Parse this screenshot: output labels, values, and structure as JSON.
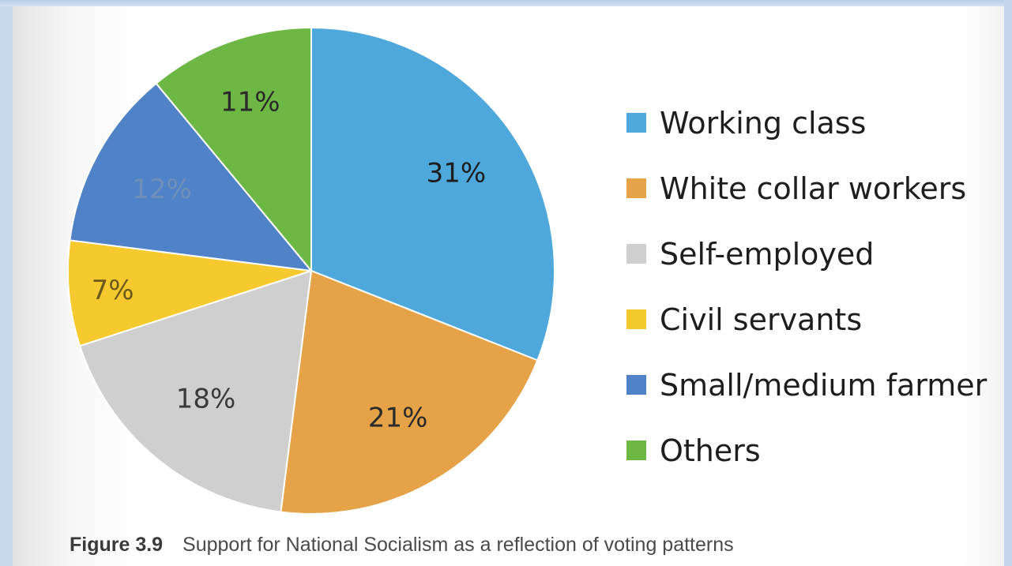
{
  "chart_data": {
    "type": "pie",
    "categories": [
      "Working class",
      "White collar workers",
      "Self-employed",
      "Civil servants",
      "Small/medium farmers",
      "Others"
    ],
    "values": [
      31,
      21,
      18,
      7,
      12,
      11
    ],
    "labels": [
      "31%",
      "21%",
      "18%",
      "7%",
      "12%",
      "11%"
    ],
    "colors": [
      "#4fa8dc",
      "#e5a247",
      "#cfcfcf",
      "#f6c92e",
      "#4f82c7",
      "#6db844"
    ],
    "legend_labels": [
      "Working class",
      "White collar workers",
      "Self-employed",
      "Civil servants",
      "Small/medium farmer",
      "Others"
    ],
    "legend_position": "right",
    "start_angle_deg": 0,
    "direction": "clockwise"
  },
  "caption": {
    "number": "Figure 3.9",
    "text": "Support for National Socialism as a reflection of voting patterns"
  }
}
